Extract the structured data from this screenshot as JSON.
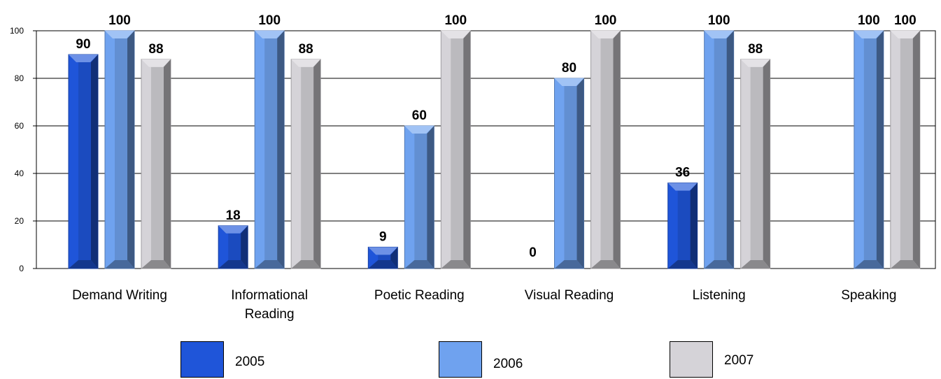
{
  "chart_data": {
    "type": "bar",
    "categories": [
      "Demand Writing",
      "Informational\nReading",
      "Poetic Reading",
      "Visual Reading",
      "Listening",
      "Speaking"
    ],
    "series": [
      {
        "name": "2005",
        "values": [
          90,
          18,
          9,
          0,
          36,
          null
        ],
        "labels": [
          "90",
          "18",
          "9",
          "0",
          "36",
          ""
        ],
        "color": "#1f55d9"
      },
      {
        "name": "2006",
        "values": [
          100,
          100,
          60,
          80,
          100,
          100
        ],
        "labels": [
          "100",
          "100",
          "60",
          "80",
          "100",
          "100"
        ],
        "color": "#6fa2ef"
      },
      {
        "name": "2007",
        "values": [
          88,
          88,
          100,
          100,
          88,
          100
        ],
        "labels": [
          "88",
          "88",
          "100",
          "100",
          "88",
          "100"
        ],
        "color": "#d5d3d8"
      }
    ],
    "yticks": [
      0,
      20,
      40,
      60,
      80,
      100
    ],
    "ylim": [
      0,
      100
    ],
    "grid": true,
    "legend": "bottom"
  }
}
